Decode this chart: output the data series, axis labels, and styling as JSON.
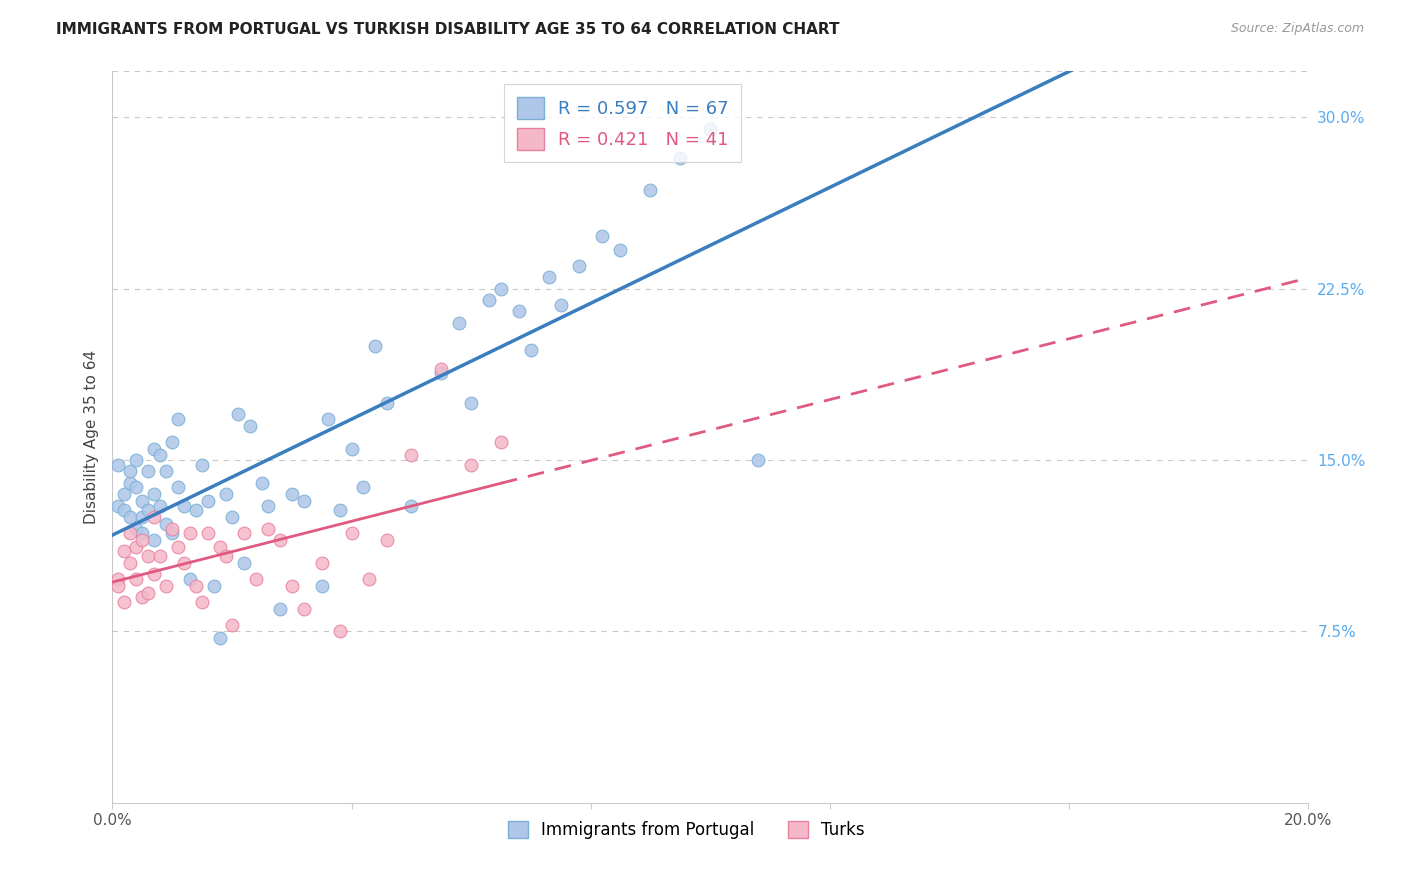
{
  "title": "IMMIGRANTS FROM PORTUGAL VS TURKISH DISABILITY AGE 35 TO 64 CORRELATION CHART",
  "source": "Source: ZipAtlas.com",
  "xlabel_label": "Immigrants from Portugal",
  "ylabel_label": "Disability Age 35 to 64",
  "xlim": [
    0.0,
    0.2
  ],
  "ylim": [
    0.0,
    0.32
  ],
  "xticks": [
    0.0,
    0.04,
    0.08,
    0.12,
    0.16,
    0.2
  ],
  "xtick_labels": [
    "0.0%",
    "",
    "",
    "",
    "",
    "20.0%"
  ],
  "ytick_labels_right": [
    "7.5%",
    "15.0%",
    "22.5%",
    "30.0%"
  ],
  "yticks_right": [
    0.075,
    0.15,
    0.225,
    0.3
  ],
  "portugal_color": "#aec6e8",
  "turks_color": "#f4b8c8",
  "portugal_edge_color": "#7bafd4",
  "turks_edge_color": "#e87fa0",
  "regression_portugal_color": "#3a7ebf",
  "regression_turks_color": "#e05a80",
  "legend_label_portugal": "R = 0.597   N = 67",
  "legend_label_turks": "R = 0.421   N = 41",
  "grid_color": "#c8c8c8",
  "background_color": "#ffffff",
  "portugal_x": [
    0.001,
    0.001,
    0.002,
    0.002,
    0.003,
    0.003,
    0.003,
    0.004,
    0.004,
    0.004,
    0.005,
    0.005,
    0.005,
    0.006,
    0.006,
    0.007,
    0.007,
    0.007,
    0.008,
    0.008,
    0.009,
    0.009,
    0.01,
    0.01,
    0.011,
    0.011,
    0.012,
    0.013,
    0.014,
    0.015,
    0.016,
    0.017,
    0.018,
    0.019,
    0.02,
    0.021,
    0.022,
    0.023,
    0.025,
    0.026,
    0.028,
    0.03,
    0.032,
    0.035,
    0.036,
    0.038,
    0.04,
    0.042,
    0.044,
    0.046,
    0.05,
    0.055,
    0.058,
    0.06,
    0.063,
    0.065,
    0.068,
    0.07,
    0.073,
    0.075,
    0.078,
    0.082,
    0.085,
    0.09,
    0.095,
    0.1,
    0.108
  ],
  "portugal_y": [
    0.13,
    0.148,
    0.135,
    0.128,
    0.14,
    0.125,
    0.145,
    0.138,
    0.12,
    0.15,
    0.125,
    0.132,
    0.118,
    0.145,
    0.128,
    0.155,
    0.135,
    0.115,
    0.152,
    0.13,
    0.145,
    0.122,
    0.158,
    0.118,
    0.168,
    0.138,
    0.13,
    0.098,
    0.128,
    0.148,
    0.132,
    0.095,
    0.072,
    0.135,
    0.125,
    0.17,
    0.105,
    0.165,
    0.14,
    0.13,
    0.085,
    0.135,
    0.132,
    0.095,
    0.168,
    0.128,
    0.155,
    0.138,
    0.2,
    0.175,
    0.13,
    0.188,
    0.21,
    0.175,
    0.22,
    0.225,
    0.215,
    0.198,
    0.23,
    0.218,
    0.235,
    0.248,
    0.242,
    0.268,
    0.282,
    0.295,
    0.15
  ],
  "turks_x": [
    0.001,
    0.001,
    0.002,
    0.002,
    0.003,
    0.003,
    0.004,
    0.004,
    0.005,
    0.005,
    0.006,
    0.006,
    0.007,
    0.007,
    0.008,
    0.009,
    0.01,
    0.011,
    0.012,
    0.013,
    0.014,
    0.015,
    0.016,
    0.018,
    0.019,
    0.02,
    0.022,
    0.024,
    0.026,
    0.028,
    0.03,
    0.032,
    0.035,
    0.038,
    0.04,
    0.043,
    0.046,
    0.05,
    0.055,
    0.06,
    0.065
  ],
  "turks_y": [
    0.098,
    0.095,
    0.11,
    0.088,
    0.105,
    0.118,
    0.098,
    0.112,
    0.115,
    0.09,
    0.108,
    0.092,
    0.125,
    0.1,
    0.108,
    0.095,
    0.12,
    0.112,
    0.105,
    0.118,
    0.095,
    0.088,
    0.118,
    0.112,
    0.108,
    0.078,
    0.118,
    0.098,
    0.12,
    0.115,
    0.095,
    0.085,
    0.105,
    0.075,
    0.118,
    0.098,
    0.115,
    0.152,
    0.19,
    0.148,
    0.158
  ],
  "marker_size": 85
}
